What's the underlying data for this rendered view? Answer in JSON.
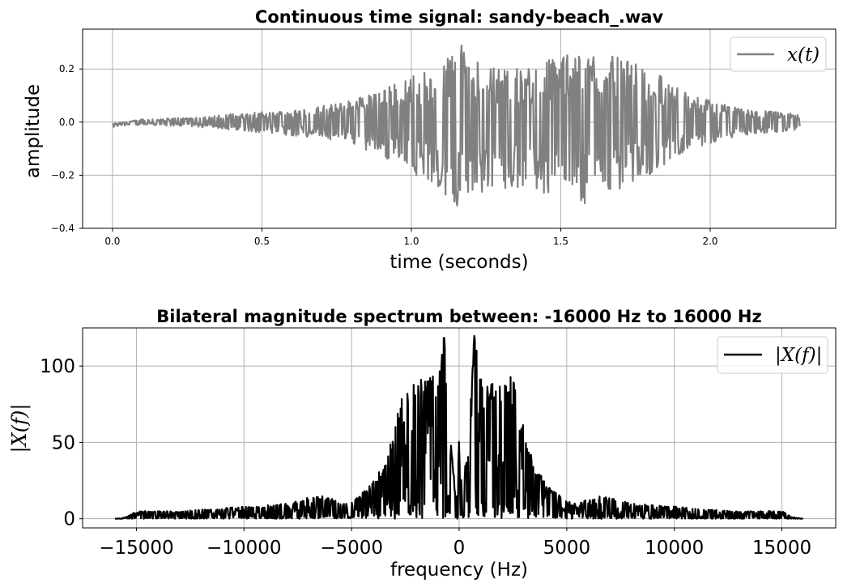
{
  "chart_data": [
    {
      "type": "line",
      "title": "Continuous time signal: sandy-beach_.wav",
      "xlabel": "time (seconds)",
      "ylabel": "amplitude",
      "xlim": [
        -0.1,
        2.42
      ],
      "ylim": [
        -0.4,
        0.35
      ],
      "xticks": [
        0.0,
        0.5,
        1.0,
        1.5,
        2.0
      ],
      "xtick_labels": [
        "0.0",
        "0.5",
        "1.0",
        "1.5",
        "2.0"
      ],
      "yticks": [
        -0.4,
        -0.2,
        0.0,
        0.2
      ],
      "ytick_labels": [
        "−0.4",
        "−0.2",
        "0.0",
        "0.2"
      ],
      "grid": true,
      "legend": "top-right",
      "series": [
        {
          "name": "x(t)",
          "color": "#808080",
          "envelope": {
            "t": [
              0.0,
              0.1,
              0.2,
              0.3,
              0.4,
              0.5,
              0.6,
              0.7,
              0.8,
              0.9,
              1.0,
              1.1,
              1.15,
              1.2,
              1.3,
              1.4,
              1.5,
              1.55,
              1.6,
              1.7,
              1.8,
              1.9,
              2.0,
              2.1,
              2.2,
              2.3
            ],
            "max": [
              -0.01,
              0.012,
              0.015,
              0.02,
              0.03,
              0.04,
              0.045,
              0.06,
              0.08,
              0.12,
              0.17,
              0.21,
              0.32,
              0.24,
              0.2,
              0.2,
              0.26,
              0.24,
              0.27,
              0.24,
              0.2,
              0.12,
              0.08,
              0.05,
              0.04,
              0.03
            ],
            "min": [
              -0.02,
              -0.01,
              -0.015,
              -0.02,
              -0.03,
              -0.04,
              -0.05,
              -0.06,
              -0.08,
              -0.13,
              -0.19,
              -0.25,
              -0.33,
              -0.27,
              -0.25,
              -0.24,
              -0.3,
              -0.36,
              -0.27,
              -0.25,
              -0.2,
              -0.12,
              -0.08,
              -0.05,
              -0.04,
              -0.03
            ]
          }
        }
      ]
    },
    {
      "type": "line",
      "title": "Bilateral magnitude spectrum between: -16000 Hz  to 16000 Hz",
      "xlabel": "frequency (Hz)",
      "ylabel": "|X(f)|",
      "xlim": [
        -17500,
        17500
      ],
      "ylim": [
        -6,
        125
      ],
      "xticks": [
        -15000,
        -10000,
        -5000,
        0,
        5000,
        10000,
        15000
      ],
      "xtick_labels": [
        "−15000",
        "−10000",
        "−5000",
        "0",
        "5000",
        "10000",
        "15000"
      ],
      "yticks": [
        0,
        50,
        100
      ],
      "ytick_labels": [
        "0",
        "50",
        "100"
      ],
      "grid": true,
      "legend": "top-right",
      "series": [
        {
          "name": "|X(f)|",
          "color": "#000000",
          "envelope": {
            "f": [
              0,
              150,
              300,
              500,
              700,
              1000,
              1500,
              2000,
              2500,
              3000,
              3500,
              4000,
              4500,
              5000,
              5500,
              6000,
              6500,
              7000,
              8000,
              9000,
              10000,
              11000,
              12000,
              13000,
              14000,
              15000,
              15500,
              16000
            ],
            "max": [
              58,
              8,
              40,
              70,
              120,
              95,
              93,
              90,
              95,
              60,
              35,
              25,
              17,
              12,
              10,
              14,
              15,
              14,
              10,
              9,
              8,
              7,
              6,
              5,
              5,
              5,
              1,
              0
            ]
          }
        }
      ]
    }
  ]
}
